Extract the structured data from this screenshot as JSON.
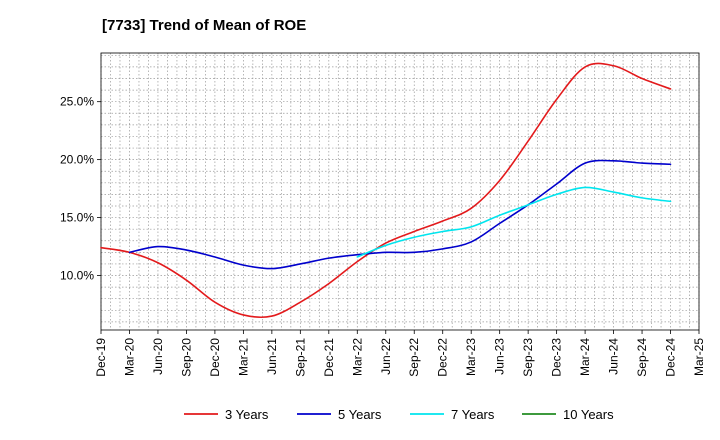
{
  "chart_data": {
    "type": "line",
    "title": "[7733]  Trend of Mean of ROE",
    "xlabel": "",
    "ylabel": "",
    "x_ticks": [
      "Dec-19",
      "Mar-20",
      "Jun-20",
      "Sep-20",
      "Dec-20",
      "Mar-21",
      "Jun-21",
      "Sep-21",
      "Dec-21",
      "Mar-22",
      "Jun-22",
      "Sep-22",
      "Dec-22",
      "Mar-23",
      "Jun-23",
      "Sep-23",
      "Dec-23",
      "Mar-24",
      "Jun-24",
      "Sep-24",
      "Dec-24",
      "Mar-25"
    ],
    "y_ticks": [
      10.0,
      15.0,
      20.0,
      25.0
    ],
    "y_tick_labels": [
      "10.0%",
      "15.0%",
      "20.0%",
      "25.0%"
    ],
    "ylim": [
      5.3,
      29.2
    ],
    "grid": true,
    "legend_position": "bottom",
    "series": [
      {
        "name": "3 Years",
        "color": "#e31a1c",
        "x": [
          "Dec-19",
          "Mar-20",
          "Jun-20",
          "Sep-20",
          "Dec-20",
          "Mar-21",
          "Jun-21",
          "Sep-21",
          "Dec-21",
          "Mar-22",
          "Jun-22",
          "Sep-22",
          "Dec-22",
          "Mar-23",
          "Jun-23",
          "Sep-23",
          "Dec-23",
          "Mar-24",
          "Jun-24",
          "Sep-24",
          "Dec-24"
        ],
        "values": [
          12.4,
          12.0,
          11.1,
          9.6,
          7.7,
          6.6,
          6.5,
          7.7,
          9.3,
          11.2,
          12.8,
          13.8,
          14.7,
          15.8,
          18.2,
          21.6,
          25.2,
          28.0,
          28.1,
          27.0,
          26.1
        ]
      },
      {
        "name": "5 Years",
        "color": "#0000cc",
        "x": [
          "Mar-20",
          "Jun-20",
          "Sep-20",
          "Dec-20",
          "Mar-21",
          "Jun-21",
          "Sep-21",
          "Dec-21",
          "Mar-22",
          "Jun-22",
          "Sep-22",
          "Dec-22",
          "Mar-23",
          "Jun-23",
          "Sep-23",
          "Dec-23",
          "Mar-24",
          "Jun-24",
          "Sep-24",
          "Dec-24"
        ],
        "values": [
          12.0,
          12.5,
          12.2,
          11.6,
          10.9,
          10.6,
          11.0,
          11.5,
          11.8,
          12.0,
          12.0,
          12.3,
          12.9,
          14.5,
          16.1,
          17.9,
          19.7,
          19.9,
          19.7,
          19.6
        ]
      },
      {
        "name": "7 Years",
        "color": "#00e5ee",
        "x": [
          "Mar-22",
          "Jun-22",
          "Sep-22",
          "Dec-22",
          "Mar-23",
          "Jun-23",
          "Sep-23",
          "Dec-23",
          "Mar-24",
          "Jun-24",
          "Sep-24",
          "Dec-24"
        ],
        "values": [
          11.6,
          12.6,
          13.3,
          13.8,
          14.2,
          15.2,
          16.1,
          17.0,
          17.6,
          17.2,
          16.7,
          16.4
        ]
      },
      {
        "name": "10 Years",
        "color": "#228b22",
        "x": [],
        "values": []
      }
    ]
  }
}
